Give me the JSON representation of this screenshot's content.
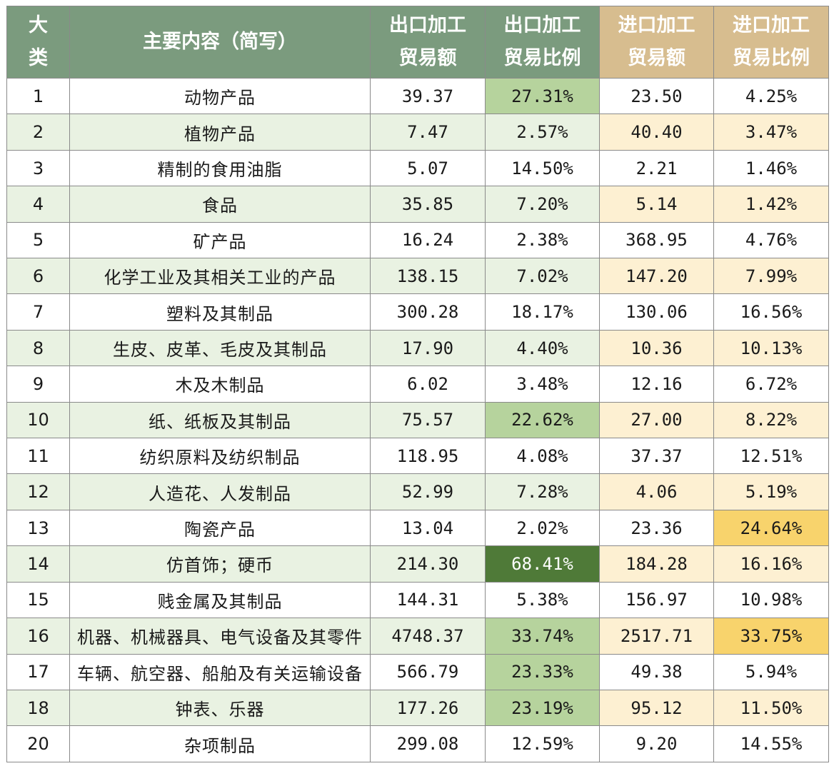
{
  "header": {
    "category": "大\n类",
    "name": "主要内容（简写）",
    "export_amount": "出口加工\n贸易额",
    "export_ratio": "出口加工\n贸易比例",
    "import_amount": "进口加工\n贸易额",
    "import_ratio": "进口加工\n贸易比例"
  },
  "colors": {
    "header_green": "#7b9b7e",
    "header_tan": "#d7bd8f",
    "row_green": "#e9f2e2",
    "row_cream": "#fdf0d2",
    "highlight_light_green": "#b6d39d",
    "highlight_dark_green": "#4f7a38",
    "highlight_yellow": "#f8d36c"
  },
  "rows": [
    {
      "cat": "1",
      "name": "动物产品",
      "exp": "39.37",
      "expr": "27.31%",
      "imp": "23.50",
      "impr": "4.25%",
      "eh": 1,
      "ih": 0
    },
    {
      "cat": "2",
      "name": "植物产品",
      "exp": "7.47",
      "expr": "2.57%",
      "imp": "40.40",
      "impr": "3.47%",
      "eh": 0,
      "ih": 0
    },
    {
      "cat": "3",
      "name": "精制的食用油脂",
      "exp": "5.07",
      "expr": "14.50%",
      "imp": "2.21",
      "impr": "1.46%",
      "eh": 0,
      "ih": 0
    },
    {
      "cat": "4",
      "name": "食品",
      "exp": "35.85",
      "expr": "7.20%",
      "imp": "5.14",
      "impr": "1.42%",
      "eh": 0,
      "ih": 0
    },
    {
      "cat": "5",
      "name": "矿产品",
      "exp": "16.24",
      "expr": "2.38%",
      "imp": "368.95",
      "impr": "4.76%",
      "eh": 0,
      "ih": 0
    },
    {
      "cat": "6",
      "name": "化学工业及其相关工业的产品",
      "exp": "138.15",
      "expr": "7.02%",
      "imp": "147.20",
      "impr": "7.99%",
      "eh": 0,
      "ih": 0
    },
    {
      "cat": "7",
      "name": "塑料及其制品",
      "exp": "300.28",
      "expr": "18.17%",
      "imp": "130.06",
      "impr": "16.56%",
      "eh": 0,
      "ih": 0
    },
    {
      "cat": "8",
      "name": "生皮、皮革、毛皮及其制品",
      "exp": "17.90",
      "expr": "4.40%",
      "imp": "10.36",
      "impr": "10.13%",
      "eh": 0,
      "ih": 0
    },
    {
      "cat": "9",
      "name": "木及木制品",
      "exp": "6.02",
      "expr": "3.48%",
      "imp": "12.16",
      "impr": "6.72%",
      "eh": 0,
      "ih": 0
    },
    {
      "cat": "10",
      "name": "纸、纸板及其制品",
      "exp": "75.57",
      "expr": "22.62%",
      "imp": "27.00",
      "impr": "8.22%",
      "eh": 1,
      "ih": 0
    },
    {
      "cat": "11",
      "name": "纺织原料及纺织制品",
      "exp": "118.95",
      "expr": "4.08%",
      "imp": "37.37",
      "impr": "12.51%",
      "eh": 0,
      "ih": 0
    },
    {
      "cat": "12",
      "name": "人造花、人发制品",
      "exp": "52.99",
      "expr": "7.28%",
      "imp": "4.06",
      "impr": "5.19%",
      "eh": 0,
      "ih": 0
    },
    {
      "cat": "13",
      "name": "陶瓷产品",
      "exp": "13.04",
      "expr": "2.02%",
      "imp": "23.36",
      "impr": "24.64%",
      "eh": 0,
      "ih": 1
    },
    {
      "cat": "14",
      "name": "仿首饰；硬币",
      "exp": "214.30",
      "expr": "68.41%",
      "imp": "184.28",
      "impr": "16.16%",
      "eh": 2,
      "ih": 0
    },
    {
      "cat": "15",
      "name": "贱金属及其制品",
      "exp": "144.31",
      "expr": "5.38%",
      "imp": "156.97",
      "impr": "10.98%",
      "eh": 0,
      "ih": 0
    },
    {
      "cat": "16",
      "name": "机器、机械器具、电气设备及其零件",
      "exp": "4748.37",
      "expr": "33.74%",
      "imp": "2517.71",
      "impr": "33.75%",
      "eh": 1,
      "ih": 1
    },
    {
      "cat": "17",
      "name": "车辆、航空器、船舶及有关运输设备",
      "exp": "566.79",
      "expr": "23.33%",
      "imp": "49.38",
      "impr": "5.94%",
      "eh": 1,
      "ih": 0
    },
    {
      "cat": "18",
      "name": "钟表、乐器",
      "exp": "177.26",
      "expr": "23.19%",
      "imp": "95.12",
      "impr": "11.50%",
      "eh": 1,
      "ih": 0
    },
    {
      "cat": "20",
      "name": "杂项制品",
      "exp": "299.08",
      "expr": "12.59%",
      "imp": "9.20",
      "impr": "14.55%",
      "eh": 0,
      "ih": 0
    }
  ]
}
